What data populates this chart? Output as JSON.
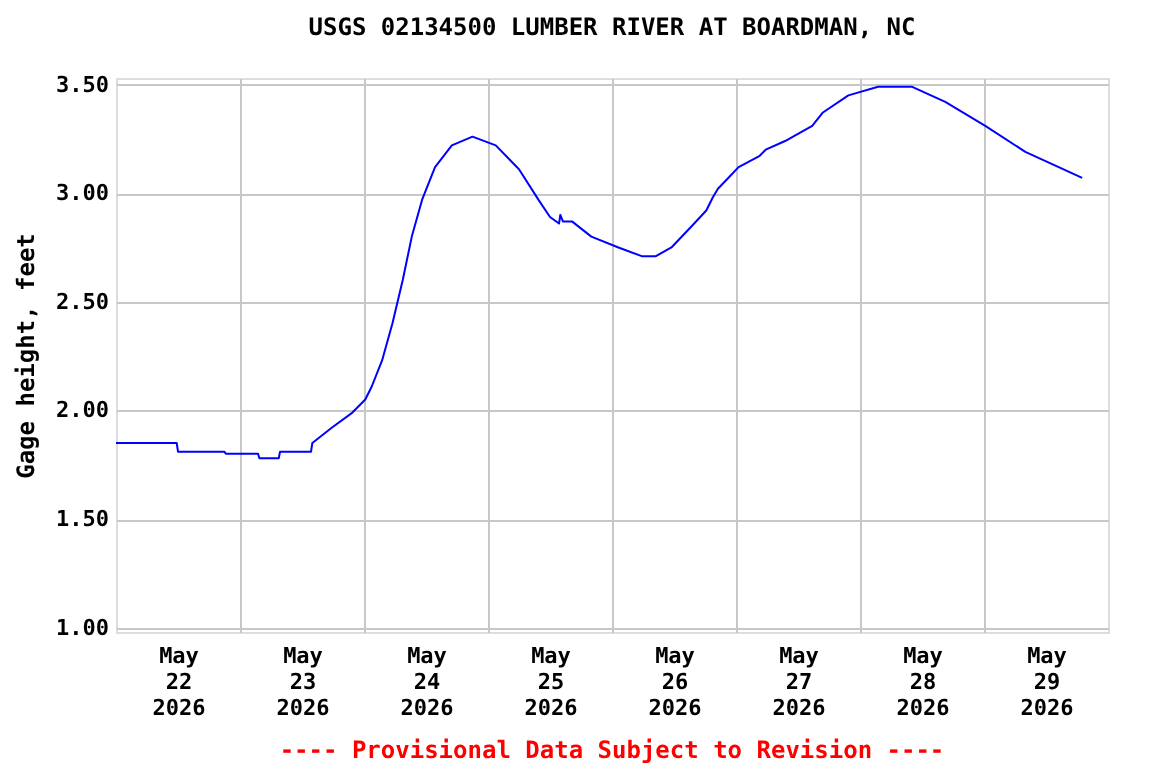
{
  "chart_data": {
    "type": "line",
    "title": "USGS 02134500 LUMBER RIVER AT BOARDMAN, NC",
    "ylabel": "Gage height, feet",
    "annotations": [
      "---- Provisional Data Subject to Revision ----"
    ],
    "x": [
      "2026-05-22T00:00",
      "2026-05-22T11:45",
      "2026-05-22T12:00",
      "2026-05-22T21:00",
      "2026-05-22T21:15",
      "2026-05-23T03:30",
      "2026-05-23T03:45",
      "2026-05-23T07:30",
      "2026-05-23T07:45",
      "2026-05-23T13:45",
      "2026-05-23T14:00",
      "2026-05-23T17:45",
      "2026-05-23T21:45",
      "2026-05-24T00:15",
      "2026-05-24T01:30",
      "2026-05-24T03:30",
      "2026-05-24T05:30",
      "2026-05-24T07:30",
      "2026-05-24T09:15",
      "2026-05-24T11:15",
      "2026-05-24T13:45",
      "2026-05-24T17:00",
      "2026-05-24T21:00",
      "2026-05-25T01:30",
      "2026-05-25T06:00",
      "2026-05-25T09:45",
      "2026-05-25T12:00",
      "2026-05-25T13:45",
      "2026-05-25T14:00",
      "2026-05-25T14:30",
      "2026-05-25T16:15",
      "2026-05-25T20:00",
      "2026-05-26T01:15",
      "2026-05-26T05:45",
      "2026-05-26T08:30",
      "2026-05-26T11:30",
      "2026-05-26T15:30",
      "2026-05-26T18:15",
      "2026-05-26T19:30",
      "2026-05-26T20:30",
      "2026-05-26T22:30",
      "2026-05-27T00:30",
      "2026-05-27T04:30",
      "2026-05-27T05:45",
      "2026-05-27T09:30",
      "2026-05-27T14:45",
      "2026-05-27T16:45",
      "2026-05-27T21:45",
      "2026-05-28T03:30",
      "2026-05-28T10:00",
      "2026-05-28T16:30",
      "2026-05-29T00:15",
      "2026-05-29T08:00",
      "2026-05-29T19:00"
    ],
    "series": [
      {
        "color": "#0000ff",
        "values": [
          1.85,
          1.85,
          1.81,
          1.81,
          1.8,
          1.8,
          1.78,
          1.78,
          1.81,
          1.81,
          1.85,
          1.92,
          1.99,
          2.05,
          2.11,
          2.23,
          2.4,
          2.6,
          2.8,
          2.97,
          3.12,
          3.22,
          3.26,
          3.22,
          3.11,
          2.97,
          2.89,
          2.86,
          2.9,
          2.87,
          2.87,
          2.8,
          2.75,
          2.71,
          2.71,
          2.75,
          2.85,
          2.92,
          2.98,
          3.02,
          3.07,
          3.12,
          3.17,
          3.2,
          3.24,
          3.31,
          3.37,
          3.45,
          3.49,
          3.49,
          3.42,
          3.31,
          3.19,
          3.07
        ]
      }
    ],
    "xlim": [
      "2026-05-22T00:00",
      "2026-05-30T00:00"
    ],
    "xticks": [
      {
        "value": "2026-05-22T12:00",
        "label": "May 22 2026"
      },
      {
        "value": "2026-05-23T12:00",
        "label": "May 23 2026"
      },
      {
        "value": "2026-05-24T12:00",
        "label": "May 24 2026"
      },
      {
        "value": "2026-05-25T12:00",
        "label": "May 25 2026"
      },
      {
        "value": "2026-05-26T12:00",
        "label": "May 26 2026"
      },
      {
        "value": "2026-05-27T12:00",
        "label": "May 27 2026"
      },
      {
        "value": "2026-05-28T12:00",
        "label": "May 28 2026"
      },
      {
        "value": "2026-05-29T12:00",
        "label": "May 29 2026"
      },
      {
        "value": "2026-05-23T00:00",
        "label": null
      },
      {
        "value": "2026-05-24T00:00",
        "label": null
      },
      {
        "value": "2026-05-25T00:00",
        "label": null
      },
      {
        "value": "2026-05-26T00:00",
        "label": null
      },
      {
        "value": "2026-05-27T00:00",
        "label": null
      },
      {
        "value": "2026-05-28T00:00",
        "label": null
      },
      {
        "value": "2026-05-29T00:00",
        "label": null
      }
    ],
    "ylim": [
      0.98,
      3.53
    ],
    "yticks": [
      {
        "value": 1,
        "label": "1.00"
      },
      {
        "value": 1.5,
        "label": "1.50"
      },
      {
        "value": 2,
        "label": "2.00"
      },
      {
        "value": 2.5,
        "label": "2.50"
      },
      {
        "value": 3,
        "label": "3.00"
      },
      {
        "value": 3.5,
        "label": "3.50"
      }
    ],
    "grid": true,
    "legend": false
  }
}
